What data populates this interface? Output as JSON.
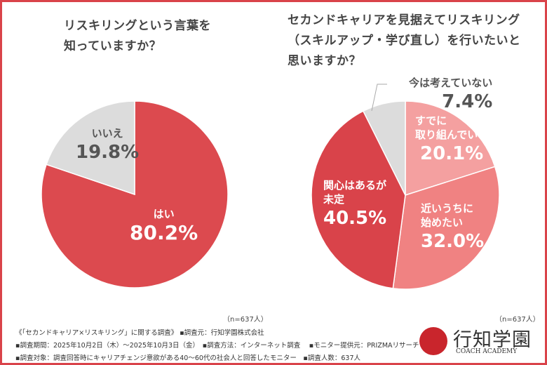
{
  "chart_data": [
    {
      "type": "pie",
      "title": "リスキリングという言葉を知っていますか？",
      "slices": [
        {
          "label": "はい",
          "value": 80.2,
          "display": "80.2%",
          "color": "#dc4a4f"
        },
        {
          "label": "いいえ",
          "value": 19.8,
          "display": "19.8%",
          "color": "#dcdcdc"
        }
      ],
      "n": "（n=637人）"
    },
    {
      "type": "pie",
      "title_lines": [
        "セカンドキャリアを見据えてリスキリング",
        "（スキルアップ・学び直し）を行いたいと",
        "思いますか？"
      ],
      "slices": [
        {
          "label": "すでに取り組んでいる",
          "label_lines": [
            "すでに",
            "取り組んでいる"
          ],
          "value": 20.1,
          "display": "20.1%",
          "color": "#f4a0a0"
        },
        {
          "label": "近いうちに始めたい",
          "label_lines": [
            "近いうちに",
            "始めたい"
          ],
          "value": 32.0,
          "display": "32.0%",
          "color": "#f08282"
        },
        {
          "label": "関心はあるが未定",
          "label_lines": [
            "関心はあるが",
            "未定"
          ],
          "value": 40.5,
          "display": "40.5%",
          "color": "#d9434a"
        },
        {
          "label": "今は考えていない",
          "value": 7.4,
          "display": "7.4%",
          "color": "#dcdcdc"
        }
      ],
      "n": "（n=637人）"
    }
  ],
  "left_title_lines": [
    "リスキリングという言葉を",
    "知っていますか？"
  ],
  "footer": {
    "line1": "《「セカンドキャリア×リスキリング」に関する調査》 ▪調査元：行知学園株式会社",
    "line2": "▪調査期間：2025年10月2日（木）～2025年10月3日（金）　▪調査方法：インターネット調査　 ▪モニター提供元：PRIZMAリサーチ",
    "line3": "▪調査対象：調査回答時にキャリアチェンジ意欲がある40～60代の社会人と回答したモニター　▪調査人数：637人"
  },
  "logo": {
    "name": "行知学園",
    "sub": "COACH ACADEMY"
  },
  "colors": {
    "frame": "#d9434a"
  }
}
